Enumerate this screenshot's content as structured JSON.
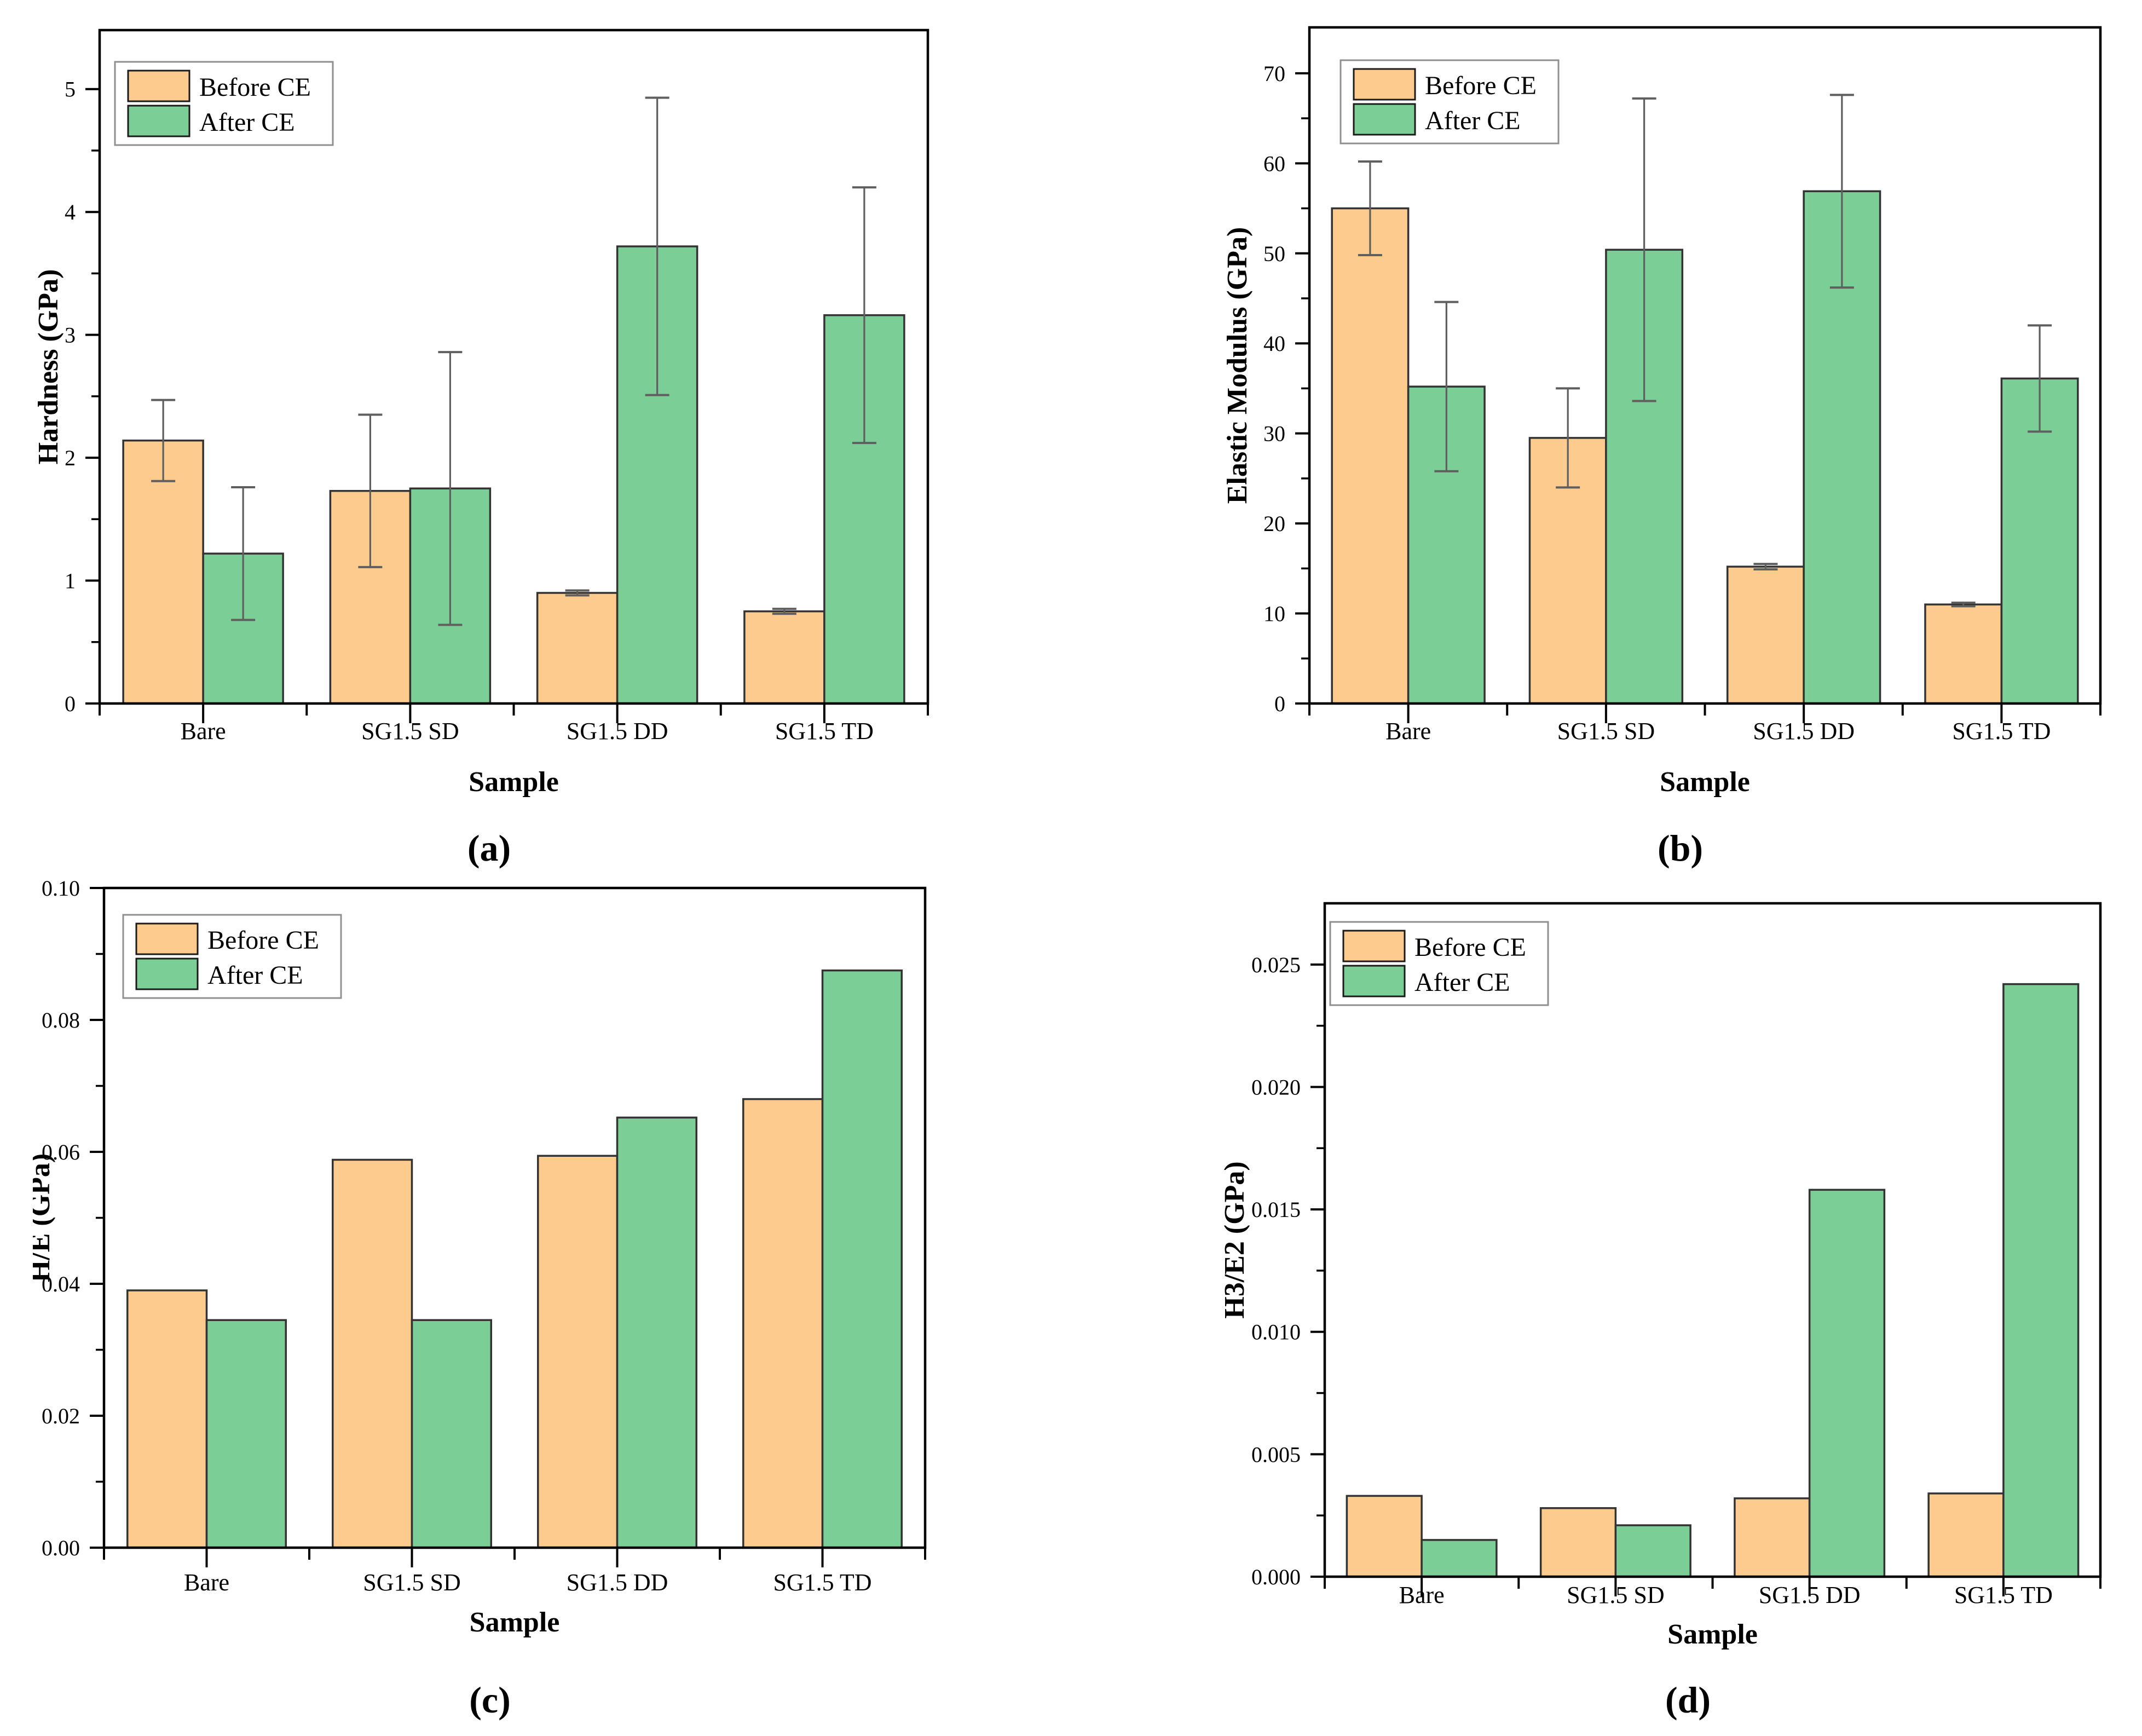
{
  "legend": {
    "before_label": "Before CE",
    "after_label": "After CE"
  },
  "xlabel": "Sample",
  "categories": [
    "Bare",
    "SG1.5 SD",
    "SG1.5 DD",
    "SG1.5 TD"
  ],
  "colors": {
    "before_fill": "#FCCB8D",
    "after_fill": "#7CCE97",
    "bar_edge": "#333333",
    "error_bar": "#5F5F5F",
    "axis": "#000000",
    "legend_border": "#8F8F8F",
    "background": "#FFFFFF"
  },
  "chart_data": [
    {
      "type": "bar",
      "panel_label": "(a)",
      "title": "",
      "ylabel": "Hardness (GPa)",
      "xlabel": "Sample",
      "categories": [
        "Bare",
        "SG1.5 SD",
        "SG1.5 DD",
        "SG1.5 TD"
      ],
      "ylim": [
        0,
        5.48
      ],
      "ytick_step": 1,
      "yminor_step": 0.5,
      "ytick_decimals": 0,
      "grid": false,
      "legend_position": "top-left",
      "series": [
        {
          "name": "Before CE",
          "values": [
            2.14,
            1.73,
            0.9,
            0.75
          ],
          "errors": [
            0.33,
            0.62,
            0.02,
            0.02
          ]
        },
        {
          "name": "After CE",
          "values": [
            1.22,
            1.75,
            3.72,
            3.16
          ],
          "errors": [
            0.54,
            1.11,
            1.21,
            1.04
          ]
        }
      ]
    },
    {
      "type": "bar",
      "panel_label": "(b)",
      "title": "",
      "ylabel": "Elastic Modulus (GPa)",
      "xlabel": "Sample",
      "categories": [
        "Bare",
        "SG1.5 SD",
        "SG1.5 DD",
        "SG1.5 TD"
      ],
      "ylim": [
        0,
        75.1
      ],
      "ytick_step": 10,
      "yminor_step": 5,
      "ytick_decimals": 0,
      "grid": false,
      "legend_position": "top-left",
      "series": [
        {
          "name": "Before CE",
          "values": [
            55.0,
            29.5,
            15.2,
            11.0
          ],
          "errors": [
            5.2,
            5.5,
            0.3,
            0.2
          ]
        },
        {
          "name": "After CE",
          "values": [
            35.2,
            50.4,
            56.9,
            36.1
          ],
          "errors": [
            9.4,
            16.8,
            10.7,
            5.9
          ]
        }
      ]
    },
    {
      "type": "bar",
      "panel_label": "(c)",
      "title": "",
      "ylabel": "H/E (GPa)",
      "xlabel": "Sample",
      "categories": [
        "Bare",
        "SG1.5 SD",
        "SG1.5 DD",
        "SG1.5 TD"
      ],
      "ylim": [
        0,
        0.1
      ],
      "ytick_step": 0.02,
      "yminor_step": 0.01,
      "ytick_decimals": 2,
      "grid": false,
      "legend_position": "top-left",
      "series": [
        {
          "name": "Before CE",
          "values": [
            0.039,
            0.0588,
            0.0594,
            0.068
          ],
          "errors": [
            0,
            0,
            0,
            0
          ]
        },
        {
          "name": "After CE",
          "values": [
            0.0345,
            0.0345,
            0.0652,
            0.0875
          ],
          "errors": [
            0,
            0,
            0,
            0
          ]
        }
      ]
    },
    {
      "type": "bar",
      "panel_label": "(d)",
      "title": "",
      "ylabel": "H3/E2 (GPa)",
      "xlabel": "Sample",
      "categories": [
        "Bare",
        "SG1.5 SD",
        "SG1.5 DD",
        "SG1.5 TD"
      ],
      "ylim": [
        0,
        0.0275
      ],
      "ytick_step": 0.005,
      "yminor_step": 0.0025,
      "ytick_decimals": 3,
      "grid": false,
      "legend_position": "top-left",
      "series": [
        {
          "name": "Before CE",
          "values": [
            0.0033,
            0.0028,
            0.0032,
            0.0034
          ],
          "errors": [
            0,
            0,
            0,
            0
          ]
        },
        {
          "name": "After CE",
          "values": [
            0.0015,
            0.0021,
            0.0158,
            0.0242
          ],
          "errors": [
            0,
            0,
            0,
            0
          ]
        }
      ]
    }
  ]
}
